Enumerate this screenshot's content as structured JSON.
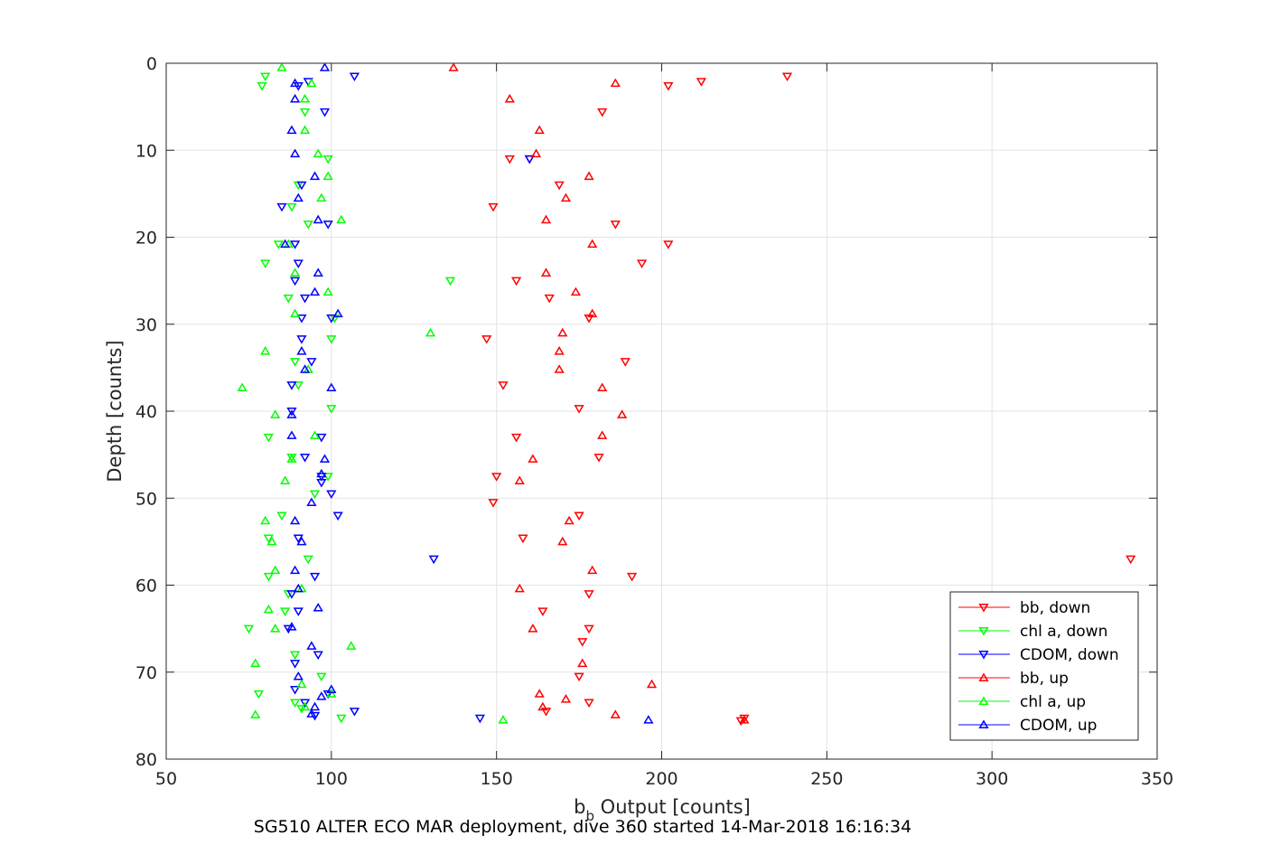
{
  "caption": "SG510 ALTER ECO MAR deployment, dive 360 started 14-Mar-2018 16:16:34",
  "chart_data": {
    "type": "scatter",
    "xlabel": {
      "main": "b",
      "sub": "b",
      "rest": " Output [counts]"
    },
    "ylabel": "Depth [counts]",
    "xlim": [
      50,
      350
    ],
    "ylim": [
      0,
      80
    ],
    "y_reversed": true,
    "grid": true,
    "xticks": [
      50,
      100,
      150,
      200,
      250,
      300,
      350
    ],
    "yticks": [
      0,
      10,
      20,
      30,
      40,
      50,
      60,
      70,
      80
    ],
    "legend_position": "bottom-right",
    "series": [
      {
        "name": "bb, down",
        "color": "#ff0000",
        "marker": "triangle-down",
        "points": [
          [
            238,
            1.5
          ],
          [
            212,
            2.1
          ],
          [
            202,
            2.6
          ],
          [
            182,
            5.6
          ],
          [
            154,
            11
          ],
          [
            160,
            11
          ],
          [
            169,
            14
          ],
          [
            149,
            16.5
          ],
          [
            186,
            18.5
          ],
          [
            202,
            20.8
          ],
          [
            194,
            23
          ],
          [
            156,
            25
          ],
          [
            166,
            27
          ],
          [
            178,
            29.3
          ],
          [
            147,
            31.7
          ],
          [
            189,
            34.3
          ],
          [
            152,
            37
          ],
          [
            175,
            39.7
          ],
          [
            156,
            43
          ],
          [
            181,
            45.3
          ],
          [
            150,
            47.5
          ],
          [
            149,
            50.5
          ],
          [
            175,
            52
          ],
          [
            158,
            54.6
          ],
          [
            342,
            57
          ],
          [
            191,
            59
          ],
          [
            178,
            61
          ],
          [
            164,
            63
          ],
          [
            178,
            65
          ],
          [
            176,
            66.5
          ],
          [
            175,
            70.5
          ],
          [
            178,
            73.5
          ],
          [
            165,
            74.5
          ],
          [
            225,
            75.3
          ],
          [
            224,
            75.6
          ]
        ]
      },
      {
        "name": "chl a, down",
        "color": "#00ff00",
        "marker": "triangle-down",
        "points": [
          [
            80,
            1.5
          ],
          [
            79,
            2.6
          ],
          [
            92,
            5.6
          ],
          [
            99,
            11
          ],
          [
            90,
            14
          ],
          [
            88,
            16.5
          ],
          [
            93,
            18.5
          ],
          [
            84,
            20.8
          ],
          [
            80,
            23
          ],
          [
            136,
            25
          ],
          [
            87,
            27
          ],
          [
            101,
            29.3
          ],
          [
            100,
            31.7
          ],
          [
            89,
            34.3
          ],
          [
            90,
            37
          ],
          [
            100,
            39.7
          ],
          [
            81,
            43
          ],
          [
            88,
            45.3
          ],
          [
            99,
            47.5
          ],
          [
            95,
            49.5
          ],
          [
            85,
            52
          ],
          [
            81,
            54.6
          ],
          [
            93,
            57
          ],
          [
            81,
            59
          ],
          [
            87,
            61
          ],
          [
            86,
            63
          ],
          [
            75,
            65
          ],
          [
            89,
            68
          ],
          [
            97,
            70.5
          ],
          [
            78,
            72.5
          ],
          [
            89,
            73.5
          ],
          [
            91,
            74.2
          ],
          [
            103,
            75.3
          ]
        ]
      },
      {
        "name": "CDOM, down",
        "color": "#0000ff",
        "marker": "triangle-down",
        "points": [
          [
            107,
            1.5
          ],
          [
            93,
            2.1
          ],
          [
            90,
            2.6
          ],
          [
            98,
            5.6
          ],
          [
            160,
            11
          ],
          [
            91,
            14
          ],
          [
            85,
            16.5
          ],
          [
            99,
            18.5
          ],
          [
            89,
            20.8
          ],
          [
            90,
            23
          ],
          [
            89,
            25
          ],
          [
            92,
            27
          ],
          [
            91,
            29.3
          ],
          [
            100,
            29.3
          ],
          [
            91,
            31.7
          ],
          [
            94,
            34.3
          ],
          [
            88,
            37
          ],
          [
            88,
            40
          ],
          [
            97,
            43
          ],
          [
            92,
            45.3
          ],
          [
            97,
            47.5
          ],
          [
            97,
            48.2
          ],
          [
            100,
            49.5
          ],
          [
            102,
            52
          ],
          [
            90,
            54.6
          ],
          [
            131,
            57
          ],
          [
            95,
            59
          ],
          [
            88,
            61
          ],
          [
            90,
            63
          ],
          [
            87,
            65
          ],
          [
            96,
            68
          ],
          [
            89,
            69
          ],
          [
            89,
            72
          ],
          [
            99,
            72.5
          ],
          [
            92,
            73.5
          ],
          [
            107,
            74.5
          ],
          [
            145,
            75.3
          ],
          [
            95,
            75
          ]
        ]
      },
      {
        "name": "bb, up",
        "color": "#ff0000",
        "marker": "triangle-up",
        "points": [
          [
            137,
            0.5
          ],
          [
            186,
            2.3
          ],
          [
            154,
            4.1
          ],
          [
            163,
            7.7
          ],
          [
            162,
            10.4
          ],
          [
            178,
            13
          ],
          [
            171,
            15.5
          ],
          [
            165,
            18
          ],
          [
            179,
            20.8
          ],
          [
            165,
            24.1
          ],
          [
            174,
            26.3
          ],
          [
            179,
            28.8
          ],
          [
            170,
            31
          ],
          [
            169,
            33.1
          ],
          [
            169,
            35.2
          ],
          [
            182,
            37.3
          ],
          [
            188,
            40.4
          ],
          [
            182,
            42.8
          ],
          [
            161,
            45.5
          ],
          [
            157,
            48
          ],
          [
            172,
            52.6
          ],
          [
            170,
            55
          ],
          [
            179,
            58.3
          ],
          [
            157,
            60.4
          ],
          [
            161,
            65
          ],
          [
            176,
            69
          ],
          [
            197,
            71.4
          ],
          [
            163,
            72.5
          ],
          [
            171,
            73.1
          ],
          [
            164,
            74
          ],
          [
            186,
            74.9
          ],
          [
            225,
            75.5
          ]
        ]
      },
      {
        "name": "chl a, up",
        "color": "#00ff00",
        "marker": "triangle-up",
        "points": [
          [
            85,
            0.5
          ],
          [
            94,
            2.3
          ],
          [
            92,
            4.1
          ],
          [
            92,
            7.7
          ],
          [
            96,
            10.4
          ],
          [
            99,
            13
          ],
          [
            97,
            15.5
          ],
          [
            103,
            18
          ],
          [
            87,
            20.8
          ],
          [
            89,
            24.1
          ],
          [
            99,
            26.3
          ],
          [
            89,
            28.8
          ],
          [
            130,
            31
          ],
          [
            80,
            33.1
          ],
          [
            93,
            35.2
          ],
          [
            73,
            37.3
          ],
          [
            83,
            40.4
          ],
          [
            95,
            42.8
          ],
          [
            88,
            45.5
          ],
          [
            86,
            48
          ],
          [
            80,
            52.6
          ],
          [
            82,
            55
          ],
          [
            83,
            58.3
          ],
          [
            91,
            60.4
          ],
          [
            81,
            62.8
          ],
          [
            83,
            65
          ],
          [
            106,
            67
          ],
          [
            77,
            69
          ],
          [
            91,
            71.4
          ],
          [
            100,
            72.5
          ],
          [
            92,
            74
          ],
          [
            77,
            74.9
          ],
          [
            152,
            75.5
          ]
        ]
      },
      {
        "name": "CDOM, up",
        "color": "#0000ff",
        "marker": "triangle-up",
        "points": [
          [
            98,
            0.5
          ],
          [
            89,
            2.3
          ],
          [
            89,
            4.1
          ],
          [
            88,
            7.7
          ],
          [
            89,
            10.4
          ],
          [
            95,
            13
          ],
          [
            90,
            15.5
          ],
          [
            96,
            18
          ],
          [
            86,
            20.8
          ],
          [
            96,
            24.1
          ],
          [
            95,
            26.3
          ],
          [
            102,
            28.8
          ],
          [
            91,
            33.1
          ],
          [
            92,
            35.2
          ],
          [
            100,
            37.3
          ],
          [
            88,
            40.4
          ],
          [
            88,
            42.8
          ],
          [
            98,
            45.5
          ],
          [
            97,
            47.2
          ],
          [
            94,
            50.5
          ],
          [
            89,
            52.6
          ],
          [
            91,
            55
          ],
          [
            89,
            58.3
          ],
          [
            90,
            60.4
          ],
          [
            96,
            62.6
          ],
          [
            88,
            64.8
          ],
          [
            94,
            67
          ],
          [
            90,
            70.5
          ],
          [
            100,
            72
          ],
          [
            97,
            72.8
          ],
          [
            95,
            74
          ],
          [
            94,
            74.8
          ],
          [
            196,
            75.5
          ]
        ]
      }
    ]
  }
}
